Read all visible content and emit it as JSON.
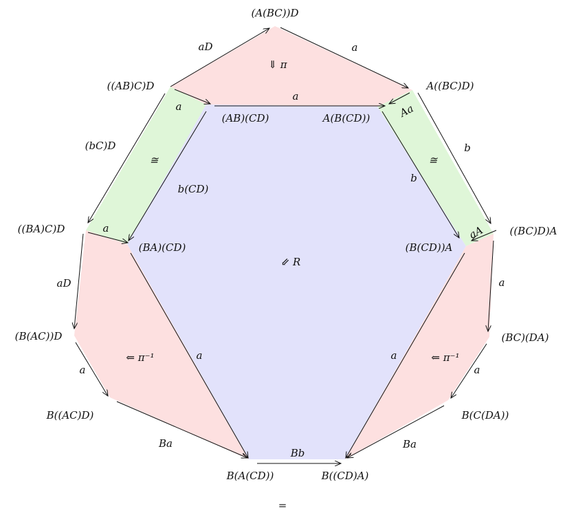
{
  "colors": {
    "pink_cells": "#fde0e0",
    "green_cells": "#dff6d8",
    "blue_cell": "#e2e2fb",
    "edge": "#111111"
  },
  "nodes": {
    "A_BC_D": "(A(BC))D",
    "AB_C_D": "((AB)C)D",
    "A_BC_D2": "A((BC)D)",
    "AB_CD": "(AB)(CD)",
    "A_B_CD": "A(B(CD))",
    "BA_C_D": "((BA)C)D",
    "BC_D_A": "((BC)D)A",
    "BA_CD": "(BA)(CD)",
    "B_CD_A": "(B(CD))A",
    "B_AC_D": "(B(AC))D",
    "BC_DA": "(BC)(DA)",
    "B_AC_D2": "B((AC)D)",
    "B_C_DA": "B(C(DA))",
    "B_A_CD": "B(A(CD))",
    "B_CD_A2": "B((CD)A)"
  },
  "edges": {
    "top_left_aD": "aD",
    "top_right_a": "a",
    "top_inner_a": "a",
    "left_a1": "a",
    "left_bC_D": "(bC)D",
    "left_b_CD": "b(CD)",
    "left_a2": "a",
    "right_Aa": "Aa",
    "right_b_outer": "b",
    "right_b_inner": "b",
    "right_aA": "aA",
    "lower_left_aD": "aD",
    "lower_left_a": "a",
    "lower_left_Ba": "Ba",
    "lower_left_a_inner": "a",
    "lower_right_a1": "a",
    "lower_right_a2": "a",
    "lower_right_Ba": "Ba",
    "lower_right_a_inner": "a",
    "bottom_Bb": "Bb"
  },
  "cells": {
    "top_pi": "⇓ π",
    "left_iso": "≅",
    "right_iso": "≅",
    "center_R": "⇙ R",
    "lower_left_pi_inv": "⇐ π⁻¹",
    "lower_right_pi_inv": "⇐ π⁻¹"
  },
  "footer": {
    "equals": "="
  }
}
